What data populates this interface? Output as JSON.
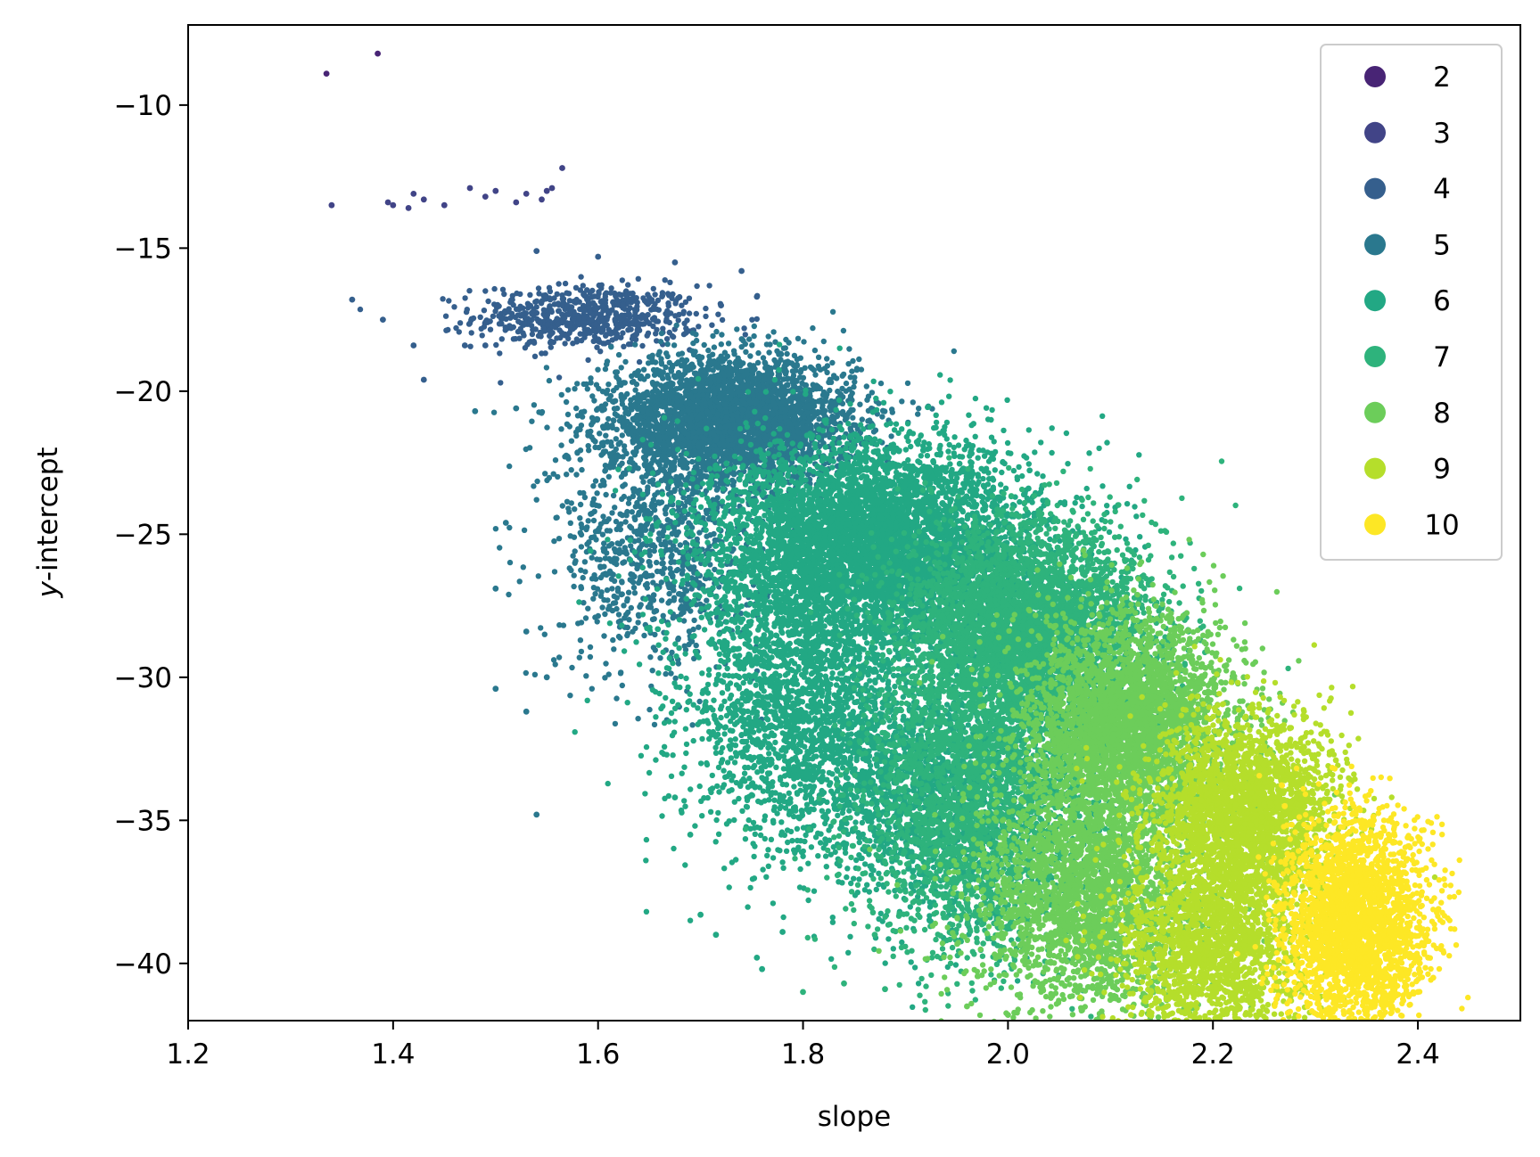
{
  "chart_data": {
    "type": "scatter",
    "title": "",
    "xlabel": "slope",
    "ylabel_italic_prefix": "y",
    "ylabel_rest": "-intercept",
    "xlim": [
      1.2,
      2.5
    ],
    "ylim": [
      -42,
      -7.2
    ],
    "xticks": [
      1.2,
      1.4,
      1.6,
      1.8,
      2.0,
      2.2,
      2.4
    ],
    "xtick_labels": [
      "1.2",
      "1.4",
      "1.6",
      "1.8",
      "2.0",
      "2.2",
      "2.4"
    ],
    "yticks": [
      -10,
      -15,
      -20,
      -25,
      -30,
      -35,
      -40
    ],
    "ytick_labels": [
      "−10",
      "−15",
      "−20",
      "−25",
      "−30",
      "−35",
      "−40"
    ],
    "grid": false,
    "legend_position": "top-right",
    "series": [
      {
        "name": "2",
        "color": "#482475",
        "clusters": [],
        "outliers": [
          [
            1.335,
            -8.9
          ],
          [
            1.385,
            -8.2
          ]
        ]
      },
      {
        "name": "3",
        "color": "#414487",
        "clusters": [],
        "outliers": [
          [
            1.34,
            -13.5
          ],
          [
            1.395,
            -13.4
          ],
          [
            1.4,
            -13.5
          ],
          [
            1.415,
            -13.6
          ],
          [
            1.42,
            -13.1
          ],
          [
            1.43,
            -13.3
          ],
          [
            1.45,
            -13.5
          ],
          [
            1.475,
            -12.9
          ],
          [
            1.49,
            -13.2
          ],
          [
            1.5,
            -13.0
          ],
          [
            1.52,
            -13.4
          ],
          [
            1.53,
            -13.1
          ],
          [
            1.545,
            -13.3
          ],
          [
            1.55,
            -13.0
          ],
          [
            1.555,
            -12.9
          ],
          [
            1.565,
            -12.2
          ]
        ]
      },
      {
        "name": "4",
        "color": "#355f8d",
        "clusters": [
          {
            "cx": 1.59,
            "cy": -17.4,
            "sx": 0.055,
            "sy": 0.55,
            "n": 650
          }
        ],
        "outliers": [
          [
            1.36,
            -16.8
          ],
          [
            1.39,
            -17.5
          ],
          [
            1.42,
            -18.4
          ],
          [
            1.43,
            -19.6
          ],
          [
            1.47,
            -18.4
          ],
          [
            1.49,
            -18.4
          ],
          [
            1.74,
            -15.8
          ],
          [
            1.755,
            -16.7
          ],
          [
            1.72,
            -17.0
          ],
          [
            1.54,
            -15.1
          ],
          [
            1.6,
            -15.3
          ],
          [
            1.675,
            -15.5
          ]
        ]
      },
      {
        "name": "5",
        "color": "#2a788e",
        "clusters": [
          {
            "cx": 1.73,
            "cy": -21.0,
            "sx": 0.06,
            "sy": 1.1,
            "n": 3400
          },
          {
            "cx": 1.66,
            "cy": -25.5,
            "sx": 0.05,
            "sy": 2.2,
            "n": 900
          }
        ],
        "outliers": [
          [
            1.5,
            -26.9
          ],
          [
            1.5,
            -30.4
          ],
          [
            1.53,
            -28.4
          ],
          [
            1.54,
            -34.8
          ],
          [
            1.53,
            -31.2
          ],
          [
            1.48,
            -20.7
          ],
          [
            1.52,
            -20.6
          ],
          [
            1.55,
            -30.0
          ],
          [
            1.51,
            -24.6
          ]
        ]
      },
      {
        "name": "6",
        "color": "#22a884",
        "clusters": [
          {
            "cx": 1.87,
            "cy": -25.3,
            "sx": 0.08,
            "sy": 1.8,
            "n": 5200
          },
          {
            "cx": 1.8,
            "cy": -31.0,
            "sx": 0.06,
            "sy": 2.6,
            "n": 2200
          },
          {
            "cx": 1.93,
            "cy": -34.0,
            "sx": 0.06,
            "sy": 2.2,
            "n": 1500
          }
        ],
        "outliers": [
          [
            1.7,
            -38.3
          ],
          [
            1.715,
            -39.0
          ],
          [
            1.755,
            -39.8
          ],
          [
            1.76,
            -40.2
          ],
          [
            1.675,
            -34.2
          ],
          [
            1.69,
            -35.5
          ],
          [
            2.02,
            -23.4
          ],
          [
            1.78,
            -38.9
          ]
        ]
      },
      {
        "name": "7",
        "color": "#2eb37c",
        "clusters": [
          {
            "cx": 2.02,
            "cy": -28.5,
            "sx": 0.06,
            "sy": 1.9,
            "n": 4200
          },
          {
            "cx": 1.97,
            "cy": -34.5,
            "sx": 0.055,
            "sy": 2.6,
            "n": 2500
          }
        ],
        "outliers": [
          [
            1.8,
            -41.0
          ],
          [
            1.84,
            -40.7
          ],
          [
            1.88,
            -40.9
          ],
          [
            2.13,
            -26.8
          ],
          [
            1.87,
            -39.0
          ]
        ]
      },
      {
        "name": "8",
        "color": "#6ccd5a",
        "clusters": [
          {
            "cx": 2.12,
            "cy": -31.5,
            "sx": 0.05,
            "sy": 1.8,
            "n": 3200
          },
          {
            "cx": 2.08,
            "cy": -37.5,
            "sx": 0.055,
            "sy": 2.2,
            "n": 2600
          }
        ],
        "outliers": [
          [
            1.96,
            -41.5
          ],
          [
            2.0,
            -41.8
          ],
          [
            2.23,
            -30.0
          ]
        ]
      },
      {
        "name": "9",
        "color": "#b5de2b",
        "clusters": [
          {
            "cx": 2.23,
            "cy": -34.8,
            "sx": 0.045,
            "sy": 1.7,
            "n": 2600
          },
          {
            "cx": 2.2,
            "cy": -39.5,
            "sx": 0.045,
            "sy": 1.6,
            "n": 1800
          }
        ],
        "outliers": [
          [
            2.32,
            -32.9
          ],
          [
            2.12,
            -41.8
          ]
        ]
      },
      {
        "name": "10",
        "color": "#fde725",
        "clusters": [
          {
            "cx": 2.34,
            "cy": -38.6,
            "sx": 0.035,
            "sy": 1.8,
            "n": 2600
          }
        ],
        "outliers": [
          [
            2.41,
            -39.8
          ],
          [
            2.415,
            -40.5
          ],
          [
            2.4,
            -41.0
          ],
          [
            2.39,
            -35.6
          ],
          [
            2.42,
            -38.1
          ],
          [
            2.27,
            -34.5
          ]
        ]
      }
    ]
  }
}
